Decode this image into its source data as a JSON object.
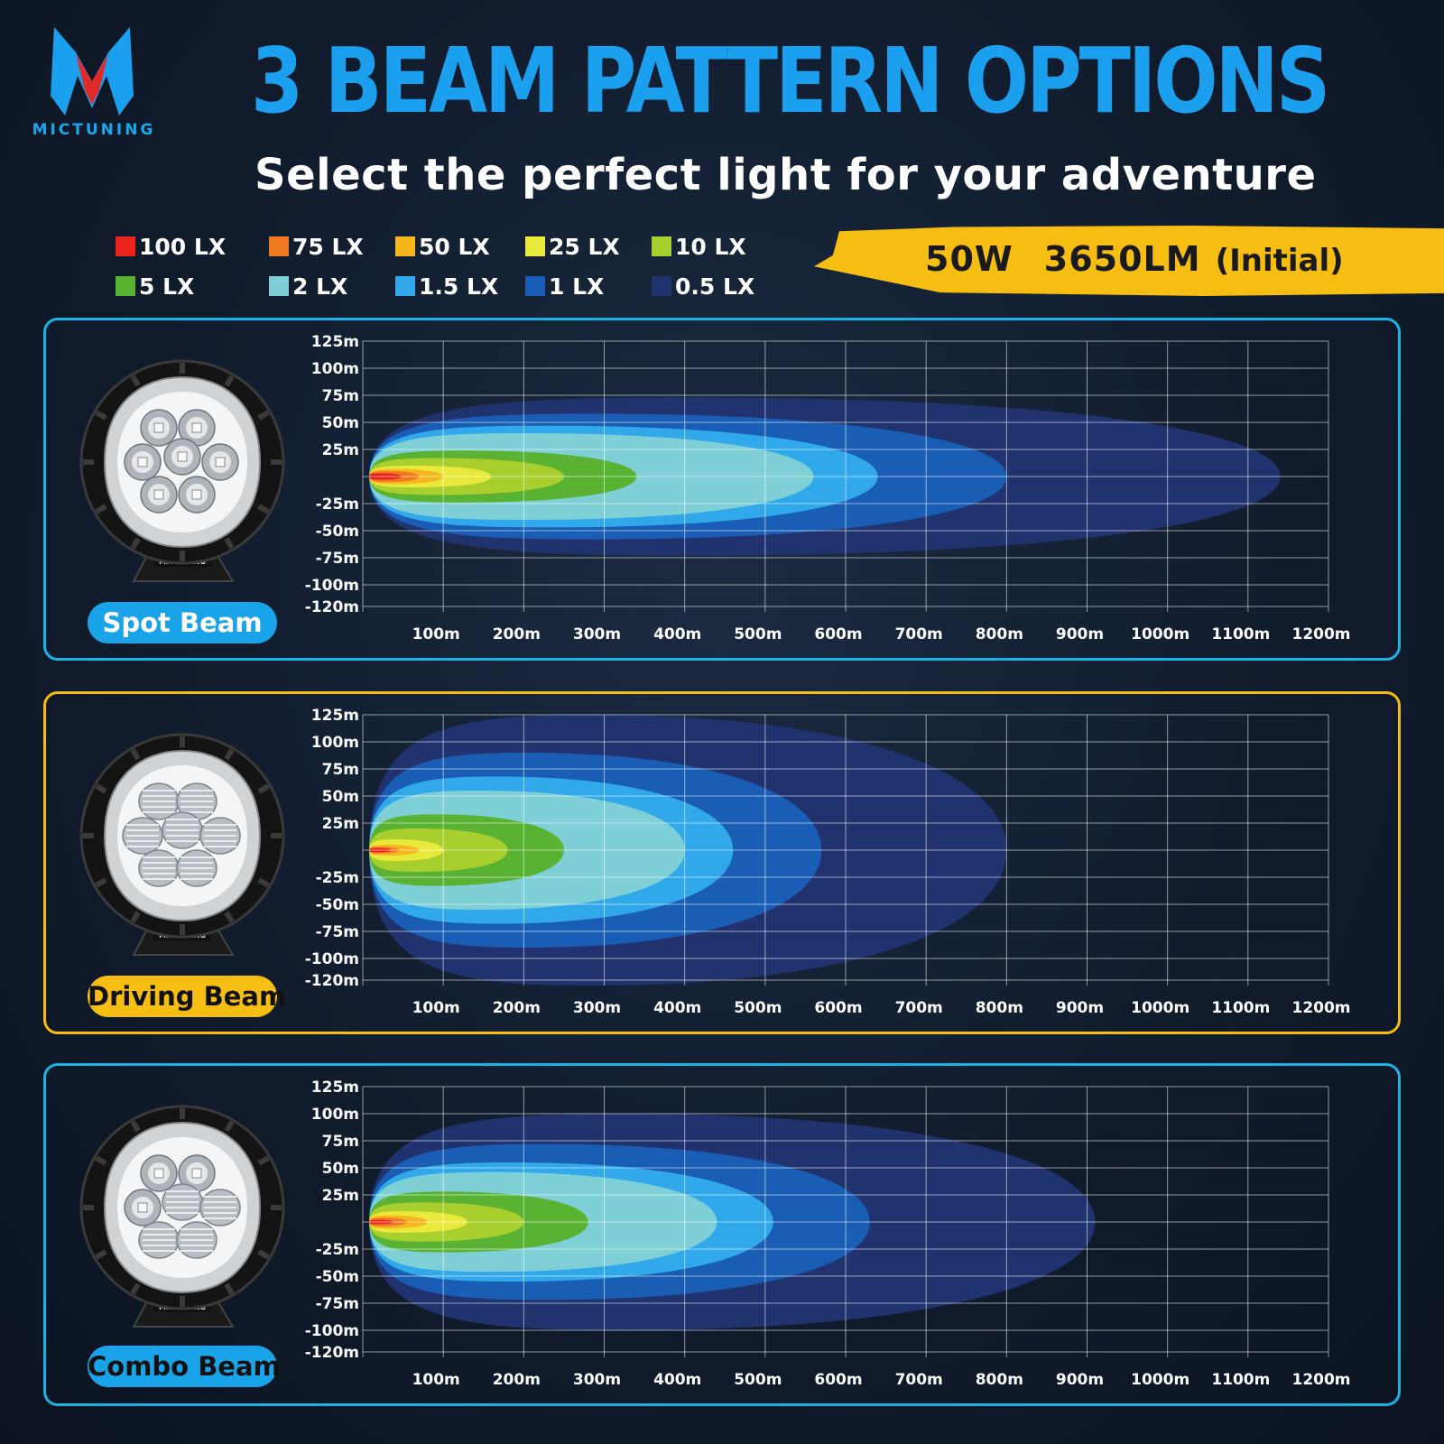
{
  "brand": {
    "name": "MICTUNING"
  },
  "header": {
    "title": "3 BEAM PATTERN OPTIONS",
    "subtitle": "Select the perfect light for your adventure"
  },
  "colors": {
    "title": "#1aa0ef",
    "accent_blue": "#19b4e6",
    "accent_yellow": "#f6bd12",
    "background": "#111c2d"
  },
  "legend": [
    {
      "label": "100 LX",
      "color": "#e8231c"
    },
    {
      "label": "75 LX",
      "color": "#ef7a22"
    },
    {
      "label": "50 LX",
      "color": "#f7b61e"
    },
    {
      "label": "25 LX",
      "color": "#e9e93c"
    },
    {
      "label": "10 LX",
      "color": "#a8cf2e"
    },
    {
      "label": "5 LX",
      "color": "#5ab232"
    },
    {
      "label": "2 LX",
      "color": "#7fcfd6"
    },
    {
      "label": "1.5 LX",
      "color": "#30a8ea"
    },
    {
      "label": "1 LX",
      "color": "#1a5db4"
    },
    {
      "label": "0.5 LX",
      "color": "#21336e"
    }
  ],
  "spec": {
    "power": "50W",
    "lumens": "3650LM",
    "note": "(Initial)"
  },
  "chart_data": [
    {
      "type": "heatmap",
      "title": "Spot Beam",
      "x_ticks": [
        "100m",
        "200m",
        "300m",
        "400m",
        "500m",
        "600m",
        "700m",
        "800m",
        "900m",
        "1000m",
        "1100m",
        "1200m"
      ],
      "y_ticks": [
        "125m",
        "100m",
        "75m",
        "50m",
        "25m",
        "-25m",
        "-50m",
        "-75m",
        "-100m",
        "-120m"
      ],
      "xlim": [
        0,
        1200
      ],
      "ylim": [
        -125,
        125
      ],
      "isolux_contours": [
        {
          "lux": "0.5 LX",
          "reach_m": 1140,
          "half_width_m": 73
        },
        {
          "lux": "1 LX",
          "reach_m": 800,
          "half_width_m": 58
        },
        {
          "lux": "1.5 LX",
          "reach_m": 640,
          "half_width_m": 47
        },
        {
          "lux": "2 LX",
          "reach_m": 560,
          "half_width_m": 40
        },
        {
          "lux": "5 LX",
          "reach_m": 340,
          "half_width_m": 24
        },
        {
          "lux": "10 LX",
          "reach_m": 250,
          "half_width_m": 17
        },
        {
          "lux": "25 LX",
          "reach_m": 160,
          "half_width_m": 10
        },
        {
          "lux": "50 LX",
          "reach_m": 100,
          "half_width_m": 7
        },
        {
          "lux": "75 LX",
          "reach_m": 70,
          "half_width_m": 5
        },
        {
          "lux": "100 LX",
          "reach_m": 48,
          "half_width_m": 3
        }
      ]
    },
    {
      "type": "heatmap",
      "title": "Driving Beam",
      "x_ticks": [
        "100m",
        "200m",
        "300m",
        "400m",
        "500m",
        "600m",
        "700m",
        "800m",
        "900m",
        "1000m",
        "1100m",
        "1200m"
      ],
      "y_ticks": [
        "125m",
        "100m",
        "75m",
        "50m",
        "25m",
        "-25m",
        "-50m",
        "-75m",
        "-100m",
        "-120m"
      ],
      "xlim": [
        0,
        1200
      ],
      "ylim": [
        -125,
        125
      ],
      "isolux_contours": [
        {
          "lux": "0.5 LX",
          "reach_m": 800,
          "half_width_m": 125
        },
        {
          "lux": "1 LX",
          "reach_m": 570,
          "half_width_m": 90
        },
        {
          "lux": "1.5 LX",
          "reach_m": 460,
          "half_width_m": 68
        },
        {
          "lux": "2 LX",
          "reach_m": 400,
          "half_width_m": 55
        },
        {
          "lux": "5 LX",
          "reach_m": 250,
          "half_width_m": 33
        },
        {
          "lux": "10 LX",
          "reach_m": 180,
          "half_width_m": 20
        },
        {
          "lux": "25 LX",
          "reach_m": 100,
          "half_width_m": 10
        },
        {
          "lux": "50 LX",
          "reach_m": 70,
          "half_width_m": 5
        },
        {
          "lux": "75 LX",
          "reach_m": 45,
          "half_width_m": 3
        },
        {
          "lux": "100 LX",
          "reach_m": 35,
          "half_width_m": 2
        }
      ]
    },
    {
      "type": "heatmap",
      "title": "Combo Beam",
      "x_ticks": [
        "100m",
        "200m",
        "300m",
        "400m",
        "500m",
        "600m",
        "700m",
        "800m",
        "900m",
        "1000m",
        "1100m",
        "1200m"
      ],
      "y_ticks": [
        "125m",
        "100m",
        "75m",
        "50m",
        "25m",
        "-25m",
        "-50m",
        "-75m",
        "-100m",
        "-120m"
      ],
      "xlim": [
        0,
        1200
      ],
      "ylim": [
        -125,
        125
      ],
      "isolux_contours": [
        {
          "lux": "0.5 LX",
          "reach_m": 910,
          "half_width_m": 100
        },
        {
          "lux": "1 LX",
          "reach_m": 630,
          "half_width_m": 72
        },
        {
          "lux": "1.5 LX",
          "reach_m": 510,
          "half_width_m": 55
        },
        {
          "lux": "2 LX",
          "reach_m": 440,
          "half_width_m": 46
        },
        {
          "lux": "5 LX",
          "reach_m": 280,
          "half_width_m": 28
        },
        {
          "lux": "10 LX",
          "reach_m": 200,
          "half_width_m": 18
        },
        {
          "lux": "25 LX",
          "reach_m": 130,
          "half_width_m": 10
        },
        {
          "lux": "50 LX",
          "reach_m": 80,
          "half_width_m": 6
        },
        {
          "lux": "75 LX",
          "reach_m": 55,
          "half_width_m": 4
        },
        {
          "lux": "100 LX",
          "reach_m": 38,
          "half_width_m": 2
        }
      ]
    }
  ],
  "panels": [
    {
      "label": "Spot Beam",
      "border_color": "#19b4e6",
      "label_bg": "#19a4ea",
      "label_color": "#ffffff"
    },
    {
      "label": "Driving Beam",
      "border_color": "#f6bd12",
      "label_bg": "#f6bd12",
      "label_color": "#111111"
    },
    {
      "label": "Combo Beam",
      "border_color": "#19b4e6",
      "label_bg": "#19a4ea",
      "label_color": "#111111"
    }
  ]
}
